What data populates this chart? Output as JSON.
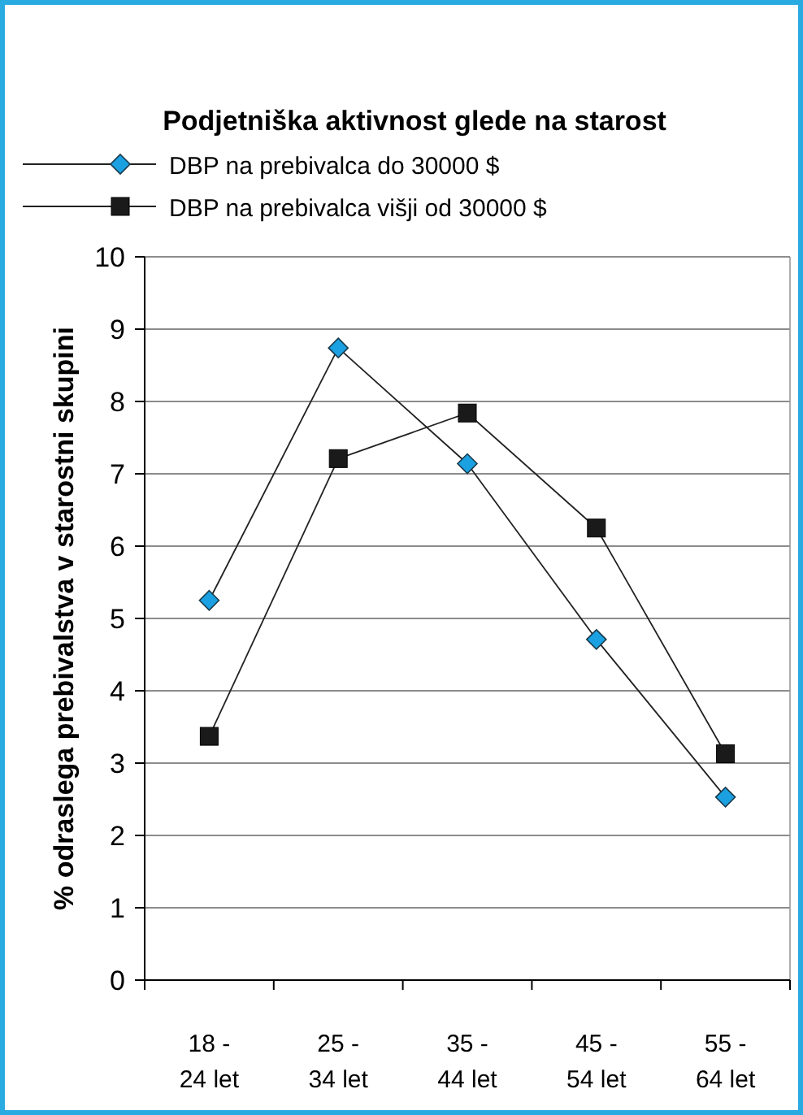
{
  "chart_data": {
    "type": "line",
    "title": "Podjetniška aktivnost glede na starost",
    "ylabel": "% odraslega prebivalstva v starostni skupini",
    "categories": [
      "18 - 24 let",
      "25 - 34 let",
      "35 - 44 let",
      "45 - 54 let",
      "55 - 64 let"
    ],
    "series": [
      {
        "name": "DBP na prebivalca do 30000 $",
        "color": "#1ba1e2",
        "marker": "diamond",
        "values": [
          5.25,
          8.74,
          7.14,
          4.71,
          2.53
        ]
      },
      {
        "name": "DBP na prebivalca višji od 30000 $",
        "color": "#1a1a1a",
        "marker": "square",
        "values": [
          3.37,
          7.21,
          7.84,
          6.25,
          3.13
        ]
      }
    ],
    "ylim": [
      0,
      10
    ],
    "yticks": [
      0,
      1,
      2,
      3,
      4,
      5,
      6,
      7,
      8,
      9,
      10
    ],
    "grid": "y",
    "legend": "top left",
    "line_style": "solid"
  }
}
